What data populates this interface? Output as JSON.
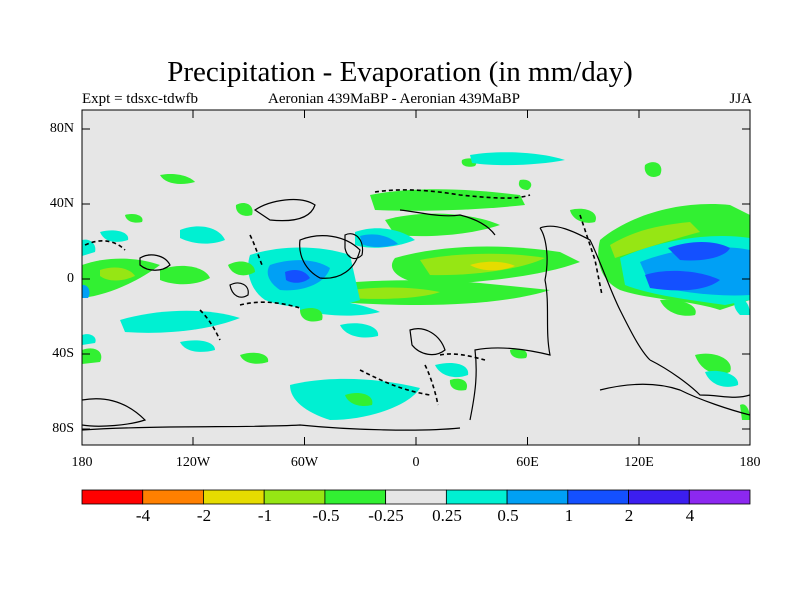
{
  "title": "Precipitation - Evaporation (in mm/day)",
  "subtitle_left": "Expt = tdsxc-tdwfb",
  "subtitle_center": "Aeronian 439MaBP - Aeronian 439MaBP",
  "subtitle_right": "JJA",
  "map": {
    "background_color": "#e6e6e6",
    "y_ticks": [
      "80N",
      "40N",
      "0",
      "40S",
      "80S"
    ],
    "x_ticks": [
      "180",
      "120W",
      "60W",
      "0",
      "60E",
      "120E",
      "180"
    ]
  },
  "colorbar": {
    "colors": [
      "#ff0000",
      "#ff8000",
      "#e6dc00",
      "#96e614",
      "#32f032",
      "#e6e6e6",
      "#00f0d2",
      "#00a0f5",
      "#1450ff",
      "#3c1ef0",
      "#8c28f0"
    ],
    "labels": [
      "-4",
      "-2",
      "-1",
      "-0.5",
      "-0.25",
      "0.25",
      "0.5",
      "1",
      "2",
      "4"
    ]
  }
}
